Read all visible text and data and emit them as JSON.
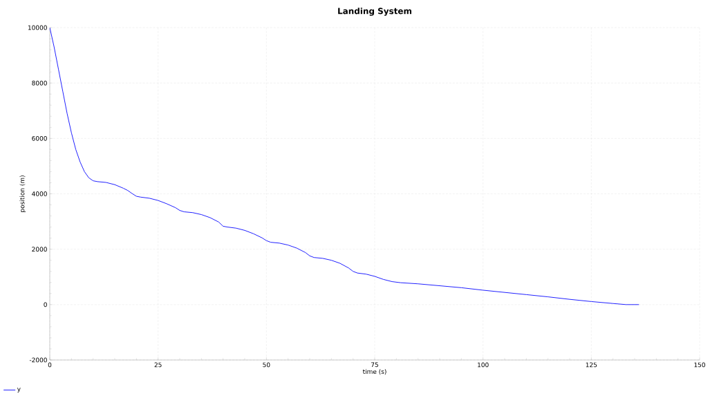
{
  "chart_data": {
    "type": "line",
    "title": "Landing System",
    "xlabel": "time (s)",
    "ylabel": "position (m)",
    "xlim": [
      0,
      150
    ],
    "xticks": [
      0,
      25,
      50,
      75,
      100,
      125,
      150
    ],
    "ylim": [
      -2000,
      10000
    ],
    "yticks": [
      -2000,
      0,
      2000,
      4000,
      6000,
      8000,
      10000
    ],
    "grid": true,
    "legend": "bottom left",
    "line_style": "solid",
    "x": [
      0,
      1,
      2,
      3,
      4,
      5,
      6,
      7,
      8,
      9,
      10,
      11,
      13,
      15,
      17,
      18,
      19,
      20,
      21,
      23,
      25,
      27,
      29,
      30,
      31,
      33,
      35,
      37,
      39,
      40,
      41,
      43,
      45,
      47,
      49,
      50,
      51,
      53,
      55,
      57,
      59,
      60,
      61,
      63,
      65,
      67,
      69,
      70,
      71,
      73,
      75,
      77,
      79,
      81,
      85,
      90,
      95,
      100,
      105,
      110,
      115,
      120,
      125,
      130,
      133,
      136
    ],
    "series": [
      {
        "name": "y",
        "color": "#2020ff",
        "values": [
          10000,
          9300,
          8500,
          7700,
          6900,
          6200,
          5600,
          5150,
          4800,
          4580,
          4470,
          4440,
          4410,
          4330,
          4200,
          4120,
          4010,
          3910,
          3880,
          3840,
          3760,
          3640,
          3500,
          3400,
          3350,
          3320,
          3250,
          3140,
          2980,
          2830,
          2800,
          2760,
          2680,
          2560,
          2410,
          2310,
          2250,
          2220,
          2150,
          2040,
          1880,
          1760,
          1700,
          1670,
          1600,
          1490,
          1320,
          1200,
          1140,
          1100,
          1020,
          910,
          830,
          790,
          750,
          680,
          610,
          520,
          440,
          360,
          280,
          190,
          110,
          40,
          0,
          0
        ]
      }
    ]
  }
}
